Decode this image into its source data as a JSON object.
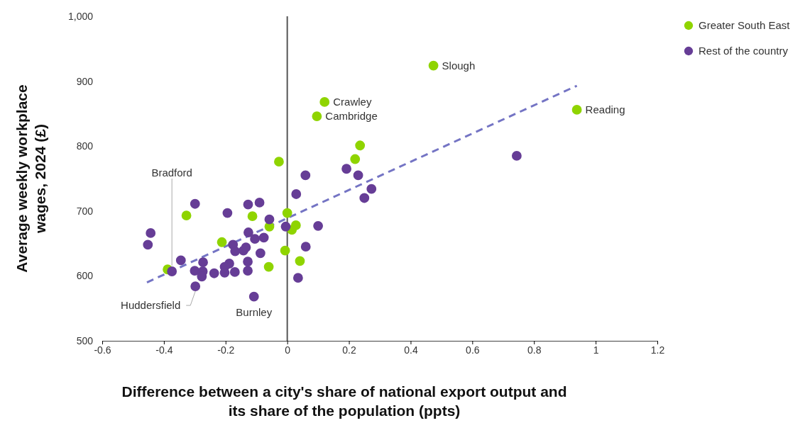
{
  "chart_data": {
    "type": "scatter",
    "xlabel": "Difference between a city's share of national export output and its share of the population (ppts)",
    "ylabel": "Average weekly workplace wages, 2024 (£)",
    "xlim": [
      -0.6,
      1.2
    ],
    "xticks": [
      -0.6,
      -0.4,
      -0.2,
      {
        "value": 0,
        "label": "0"
      },
      0.2,
      0.4,
      0.6,
      0.8,
      {
        "value": 1,
        "label": "1"
      },
      1.2
    ],
    "ylim": [
      500,
      1000
    ],
    "yticks": [
      500,
      600,
      700,
      800,
      900,
      {
        "value": 1000,
        "label": "1,000"
      }
    ],
    "grid": false,
    "legend": "top right",
    "marker": "circle",
    "ref_lines": [
      {
        "axis": "x",
        "value": 0,
        "color": "#555555"
      }
    ],
    "series": [
      {
        "name": "Greater South East",
        "color": "#8fd400",
        "x": [
          0.474,
          0.121,
          0.096,
          0.939,
          0.236,
          0.22,
          -0.027,
          -0.327,
          -0.113,
          0,
          -0.058,
          0.028,
          0.015,
          -0.212,
          -0.007,
          -0.06,
          0.041,
          -0.388
        ],
        "values": [
          924,
          868,
          846,
          856,
          801,
          780,
          776,
          693,
          692,
          697,
          676,
          678,
          671,
          652,
          639,
          614,
          623,
          610
        ]
      },
      {
        "name": "Rest of the country",
        "color": "#663d96",
        "x": [
          0.059,
          0.029,
          -0.299,
          -0.127,
          -0.09,
          -0.194,
          -0.058,
          -0.005,
          -0.443,
          -0.452,
          -0.126,
          -0.105,
          -0.076,
          -0.176,
          -0.169,
          -0.142,
          -0.134,
          -0.087,
          -0.345,
          -0.273,
          0.06,
          -0.128,
          -0.188,
          -0.203,
          -0.374,
          -0.3,
          -0.274,
          -0.277,
          -0.237,
          -0.203,
          -0.17,
          -0.128,
          0.035,
          -0.298,
          -0.108,
          0.1,
          0.192,
          0.23,
          0.273,
          0.25,
          0.744
        ],
        "values": [
          755,
          726,
          711,
          710,
          713,
          697,
          687,
          676,
          666,
          648,
          667,
          657,
          659,
          648,
          638,
          639,
          644,
          635,
          624,
          621,
          645,
          622,
          619,
          614,
          607,
          608,
          607,
          599,
          604,
          605,
          606,
          608,
          597,
          584,
          568,
          677,
          765,
          755,
          734,
          720,
          785
        ]
      },
      {
        "type": "line",
        "color": "#7474c4",
        "line_style": "dashed",
        "marker": "none",
        "x": [
          -0.455,
          0.939
        ],
        "values": [
          590,
          893
        ]
      }
    ],
    "annotations": [
      {
        "text": "Slough",
        "x": 0.474,
        "y": 924
      },
      {
        "text": "Crawley",
        "x": 0.121,
        "y": 868
      },
      {
        "text": "Cambridge",
        "x": 0.096,
        "y": 846
      },
      {
        "text": "Reading",
        "x": 0.939,
        "y": 856
      },
      {
        "text": "Bradford",
        "x": -0.374,
        "y": 607
      },
      {
        "text": "Huddersfield",
        "x": -0.298,
        "y": 584
      },
      {
        "text": "Burnley",
        "x": -0.108,
        "y": 568
      }
    ]
  }
}
